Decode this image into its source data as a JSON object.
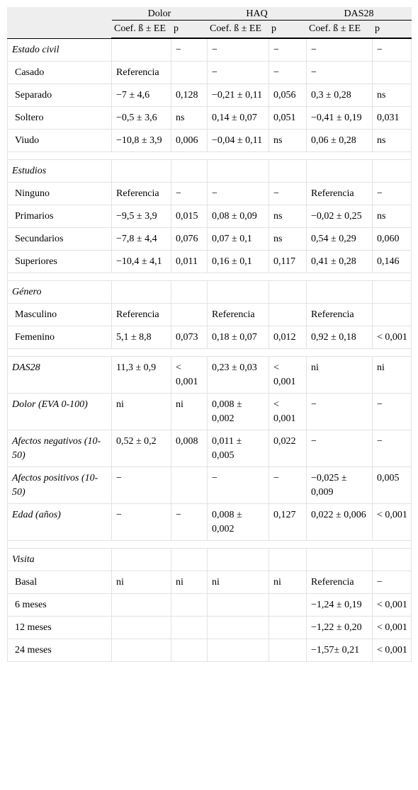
{
  "header": {
    "groups": [
      "Dolor",
      "HAQ",
      "DAS28"
    ],
    "subheaders": [
      "Coef. ß ± EE",
      "p",
      "Coef. ß ± EE",
      "p",
      "Coef. ß ± EE",
      "p"
    ]
  },
  "groups": [
    {
      "rows": [
        {
          "label": "Estado civil",
          "italic": true,
          "cells": [
            null,
            "−",
            "−",
            "−",
            "−",
            "−"
          ]
        },
        {
          "label": "Casado",
          "cells": [
            "Referencia",
            null,
            "−",
            "−",
            "−",
            null
          ]
        },
        {
          "label": "Separado",
          "cells": [
            "−7 ± 4,6",
            "0,128",
            "−0,21 ± 0,11",
            "0,056",
            "0,3 ± 0,28",
            "ns"
          ]
        },
        {
          "label": "Soltero",
          "cells": [
            "−0,5 ± 3,6",
            "ns",
            "0,14 ± 0,07",
            "0,051",
            "−0,41 ± 0,19",
            "0,031"
          ]
        },
        {
          "label": "Viudo",
          "cells": [
            "−10,8 ± 3,9",
            "0,006",
            "−0,04 ± 0,11",
            "ns",
            "0,06 ± 0,28",
            "ns"
          ]
        }
      ]
    },
    {
      "rows": [
        {
          "label": "Estudios",
          "italic": true,
          "cells": [
            null,
            null,
            null,
            null,
            null,
            null
          ]
        },
        {
          "label": "Ninguno",
          "cells": [
            "Referencia",
            "−",
            "−",
            "−",
            "Referencia",
            "−"
          ]
        },
        {
          "label": "Primarios",
          "cells": [
            "−9,5 ± 3,9",
            "0,015",
            "0,08 ± 0,09",
            "ns",
            "−0,02 ± 0,25",
            "ns"
          ]
        },
        {
          "label": "Secundarios",
          "cells": [
            "−7,8 ± 4,4",
            "0,076",
            "0,07 ± 0,1",
            "ns",
            "0,54 ± 0,29",
            "0,060"
          ]
        },
        {
          "label": "Superiores",
          "cells": [
            "−10,4 ± 4,1",
            "0,011",
            "0,16 ± 0,1",
            "0,117",
            "0,41 ± 0,28",
            "0,146"
          ]
        }
      ]
    },
    {
      "rows": [
        {
          "label": "Género",
          "italic": true,
          "cells": [
            null,
            null,
            null,
            null,
            null,
            null
          ]
        },
        {
          "label": "Masculino",
          "cells": [
            "Referencia",
            null,
            "Referencia",
            null,
            "Referencia",
            null
          ]
        },
        {
          "label": "Femenino",
          "cells": [
            "5,1 ± 8,8",
            "0,073",
            "0,18 ± 0,07",
            "0,012",
            "0,92 ± 0,18",
            "< 0,001"
          ]
        }
      ]
    },
    {
      "rows": [
        {
          "label": "DAS28",
          "italic": true,
          "cells": [
            "11,3 ± 0,9",
            "< 0,001",
            "0,23 ± 0,03",
            "< 0,001",
            "ni",
            "ni"
          ]
        },
        {
          "label": "Dolor (EVA 0-100)",
          "italic": true,
          "cells": [
            "ni",
            "ni",
            "0,008 ± 0,002",
            "< 0,001",
            "−",
            "−"
          ]
        },
        {
          "label": "Afectos negativos (10-50)",
          "italic": true,
          "cells": [
            "0,52 ± 0,2",
            "0,008",
            "0,011 ± 0,005",
            "0,022",
            "−",
            "−"
          ]
        },
        {
          "label": "Afectos positivos (10-50)",
          "italic": true,
          "cells": [
            "−",
            null,
            "−",
            "−",
            "−0,025 ± 0,009",
            "0,005"
          ]
        },
        {
          "label": "Edad (años)",
          "italic": true,
          "cells": [
            "−",
            "−",
            "0,008 ± 0,002",
            "0,127",
            "0,022 ± 0,006",
            "< 0,001"
          ]
        }
      ]
    },
    {
      "rows": [
        {
          "label": "Visita",
          "italic": true,
          "cells": [
            null,
            null,
            null,
            null,
            null,
            null
          ]
        },
        {
          "label": "Basal",
          "cells": [
            "ni",
            "ni",
            "ni",
            "ni",
            "Referencia",
            "−"
          ]
        },
        {
          "label": "6 meses",
          "cells": [
            null,
            null,
            null,
            null,
            "−1,24 ± 0,19",
            "< 0,001"
          ]
        },
        {
          "label": "12 meses",
          "cells": [
            null,
            null,
            null,
            null,
            "−1,22 ± 0,20",
            "< 0,001"
          ]
        },
        {
          "label": "24 meses",
          "cells": [
            null,
            null,
            null,
            null,
            "−1,57± 0,21",
            "< 0,001"
          ]
        }
      ]
    }
  ]
}
